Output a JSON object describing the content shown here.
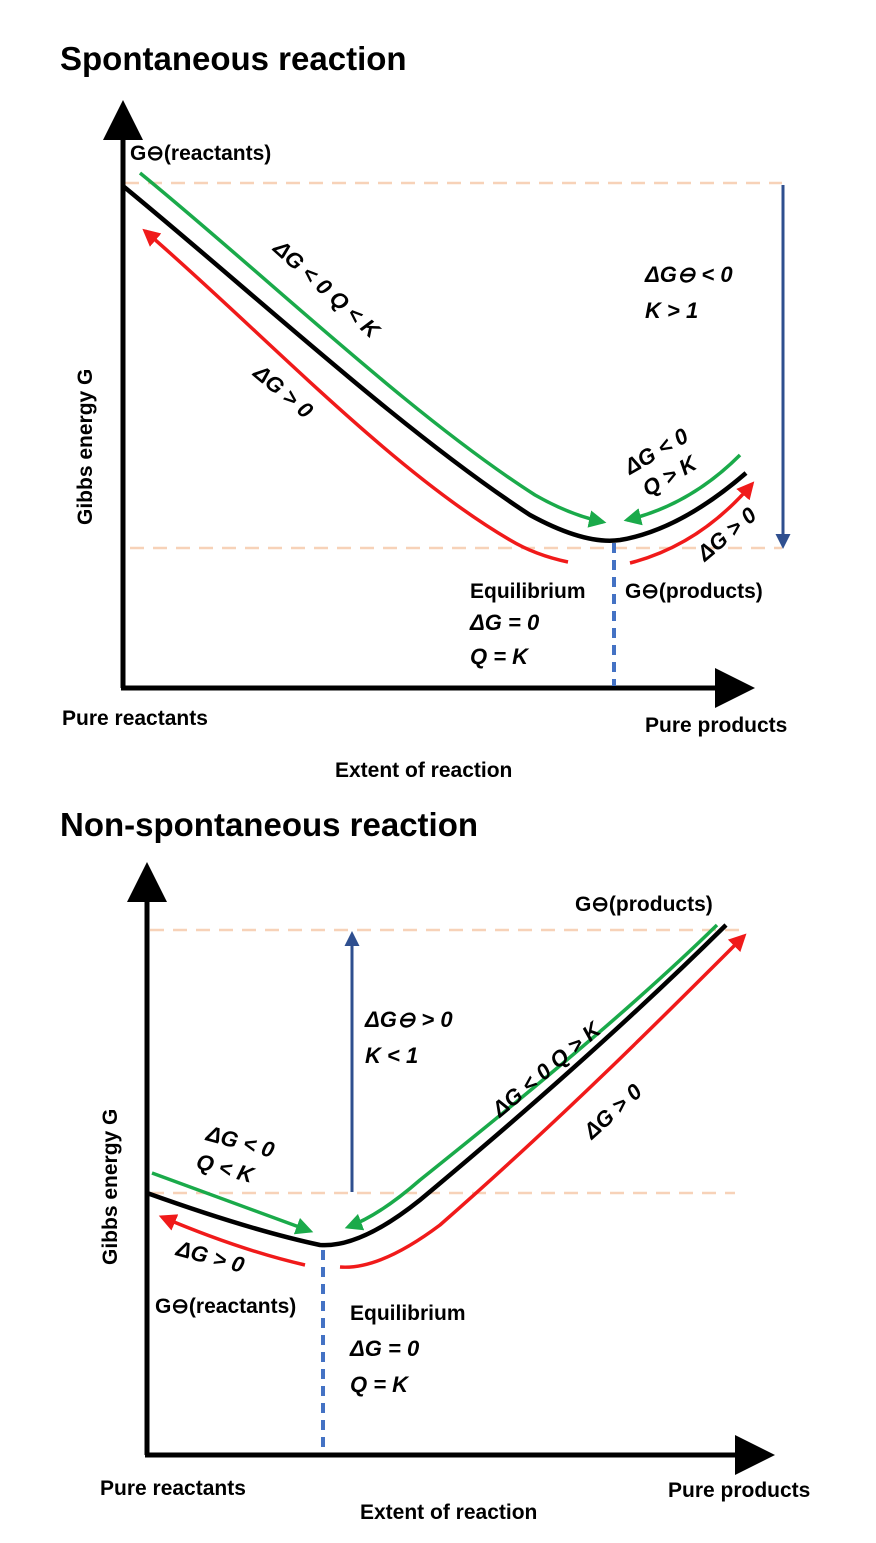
{
  "colors": {
    "curve": "#000000",
    "forward_arrow": "#1aaa4a",
    "reverse_arrow": "#f01a1a",
    "standard_gap_arrow": "#2f4f8f",
    "equilibrium_line": "#4472c4",
    "reference_lines": "#f7d2b8"
  },
  "spontaneous": {
    "title": "Spontaneous reaction",
    "y_label": "Gibbs energy G",
    "x_label": "Extent of reaction",
    "x_left": "Pure reactants",
    "x_right": "Pure products",
    "g_reactants": "G⊖(reactants)",
    "g_products": "G⊖(products)",
    "left_forward": "ΔG < 0   Q < K",
    "left_reverse": "ΔG > 0",
    "right_forward_1": "ΔG < 0",
    "right_forward_2": "Q > K",
    "right_reverse": "ΔG > 0",
    "std_1": "ΔG⊖ < 0",
    "std_2": "K > 1",
    "eq_1": "Equilibrium",
    "eq_2": "ΔG = 0",
    "eq_3": "Q = K"
  },
  "nonspontaneous": {
    "title": "Non-spontaneous reaction",
    "y_label": "Gibbs energy G",
    "x_label": "Extent of reaction",
    "x_left": "Pure reactants",
    "x_right": "Pure products",
    "g_reactants": "G⊖(reactants)",
    "g_products": "G⊖(products)",
    "left_forward_1": "ΔG < 0",
    "left_forward_2": "Q < K",
    "left_reverse": "ΔG > 0",
    "right_forward": "ΔG < 0   Q > K",
    "right_reverse": "ΔG > 0",
    "std_1": "ΔG⊖ > 0",
    "std_2": "K < 1",
    "eq_1": "Equilibrium",
    "eq_2": "ΔG = 0",
    "eq_3": "Q = K"
  }
}
